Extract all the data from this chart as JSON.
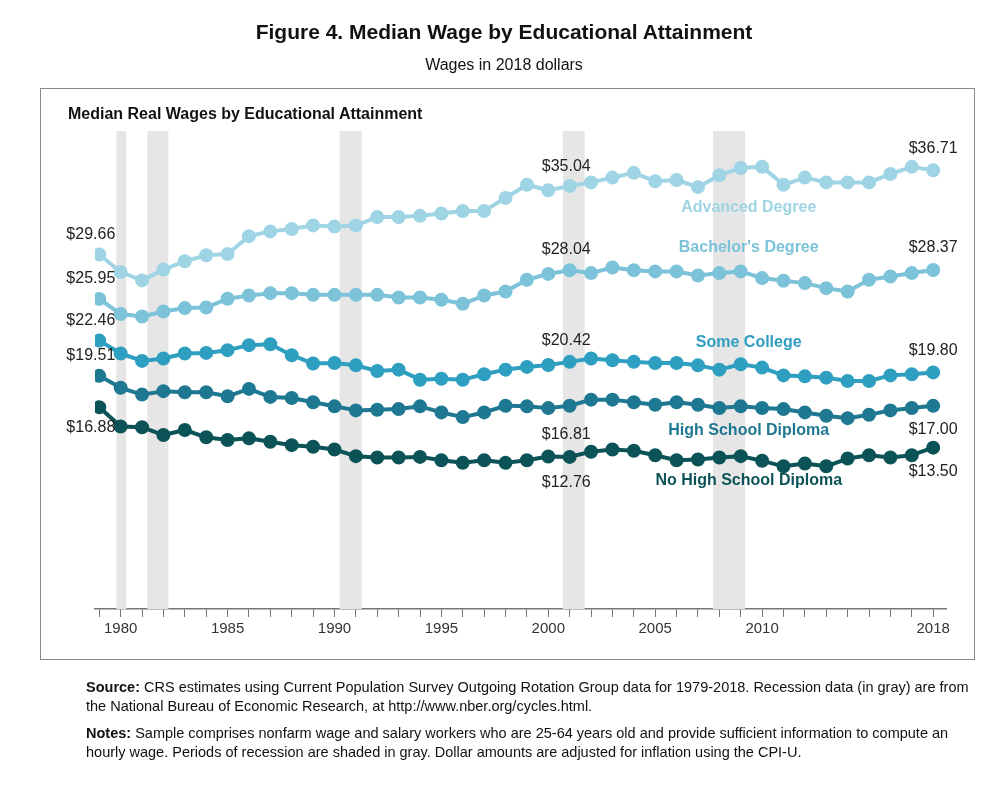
{
  "chart_data": {
    "type": "line",
    "title": "Figure 4. Median Wage by Educational Attainment",
    "subtitle": "Wages in 2018 dollars",
    "annotations": [
      "Median Real Wages by Educational Attainment",
      "Source: CRS estimates using Current Population Survey Outgoing Rotation Group data for 1979-2018. Recession data (in gray) are from the National Bureau of Economic Research, at http://www.nber.org/cycles.html.",
      "Notes: Sample comprises nonfarm wage and salary workers who are 25-64 years old and provide sufficient information to compute an hourly wage. Periods of recession are shaded in gray. Dollar amounts are adjusted for inflation using the CPI-U."
    ],
    "x": [
      1979,
      1980,
      1981,
      1982,
      1983,
      1984,
      1985,
      1986,
      1987,
      1988,
      1989,
      1990,
      1991,
      1992,
      1993,
      1994,
      1995,
      1996,
      1997,
      1998,
      1999,
      2000,
      2001,
      2002,
      2003,
      2004,
      2005,
      2006,
      2007,
      2008,
      2009,
      2010,
      2011,
      2012,
      2013,
      2014,
      2015,
      2016,
      2017,
      2018
    ],
    "xlim": [
      1978.8,
      2018.6
    ],
    "xticks": [
      {
        "value": 1979,
        "label": null
      },
      1980,
      {
        "value": 1981,
        "label": null
      },
      {
        "value": 1982,
        "label": null
      },
      {
        "value": 1983,
        "label": null
      },
      {
        "value": 1984,
        "label": null
      },
      1985,
      {
        "value": 1986,
        "label": null
      },
      {
        "value": 1987,
        "label": null
      },
      {
        "value": 1988,
        "label": null
      },
      {
        "value": 1989,
        "label": null
      },
      1990,
      {
        "value": 1991,
        "label": null
      },
      {
        "value": 1992,
        "label": null
      },
      {
        "value": 1993,
        "label": null
      },
      {
        "value": 1994,
        "label": null
      },
      1995,
      {
        "value": 1996,
        "label": null
      },
      {
        "value": 1997,
        "label": null
      },
      {
        "value": 1998,
        "label": null
      },
      {
        "value": 1999,
        "label": null
      },
      2000,
      {
        "value": 2001,
        "label": null
      },
      {
        "value": 2002,
        "label": null
      },
      {
        "value": 2003,
        "label": null
      },
      {
        "value": 2004,
        "label": null
      },
      2005,
      {
        "value": 2006,
        "label": null
      },
      {
        "value": 2007,
        "label": null
      },
      {
        "value": 2008,
        "label": null
      },
      {
        "value": 2009,
        "label": null
      },
      2010,
      {
        "value": 2011,
        "label": null
      },
      {
        "value": 2012,
        "label": null
      },
      {
        "value": 2013,
        "label": null
      },
      {
        "value": 2014,
        "label": null
      },
      {
        "value": 2015,
        "label": null
      },
      {
        "value": 2016,
        "label": null
      },
      {
        "value": 2017,
        "label": null
      },
      2018
    ],
    "tick_labels": "x",
    "grid": false,
    "legend": false,
    "marker": "circle",
    "bands": [
      {
        "axis": "x",
        "from": 1979.8,
        "to": 1980.26,
        "color": "#e6e6e6"
      },
      {
        "axis": "x",
        "from": 1981.25,
        "to": 1982.23,
        "color": "#e6e6e6"
      },
      {
        "axis": "x",
        "from": 1990.24,
        "to": 1991.27,
        "color": "#e6e6e6"
      },
      {
        "axis": "x",
        "from": 2000.68,
        "to": 2001.7,
        "color": "#e6e6e6"
      },
      {
        "axis": "x",
        "from": 2007.7,
        "to": 2009.2,
        "color": "#e6e6e6"
      }
    ],
    "series": [
      {
        "name": "Advanced Degree",
        "color": "#9fd4e4",
        "values": [
          29.66,
          28.2,
          27.5,
          28.4,
          29.1,
          29.6,
          29.7,
          31.2,
          31.6,
          31.8,
          32.1,
          32.0,
          32.1,
          32.8,
          32.8,
          32.9,
          33.1,
          33.3,
          33.3,
          34.4,
          35.5,
          35.04,
          35.4,
          35.7,
          36.1,
          36.5,
          35.8,
          35.9,
          35.3,
          36.3,
          36.9,
          37.0,
          35.5,
          36.1,
          35.7,
          35.7,
          35.7,
          36.4,
          37.0,
          36.71
        ],
        "value_labels": [
          "$29.66",
          null,
          null,
          null,
          null,
          null,
          null,
          null,
          null,
          null,
          null,
          null,
          null,
          null,
          null,
          null,
          null,
          null,
          null,
          null,
          null,
          "$35.04",
          null,
          null,
          null,
          null,
          null,
          null,
          null,
          null,
          null,
          null,
          null,
          null,
          null,
          null,
          null,
          null,
          null,
          "$36.71"
        ]
      },
      {
        "name": "Bachelor's Degree",
        "color": "#7cc3da",
        "values": [
          25.95,
          24.68,
          24.48,
          24.9,
          25.18,
          25.23,
          25.96,
          26.23,
          26.43,
          26.43,
          26.29,
          26.29,
          26.29,
          26.29,
          26.07,
          26.07,
          25.88,
          25.54,
          26.23,
          26.57,
          27.55,
          28.04,
          28.35,
          28.11,
          28.58,
          28.35,
          28.25,
          28.25,
          27.91,
          28.11,
          28.25,
          27.69,
          27.47,
          27.27,
          26.85,
          26.57,
          27.55,
          27.83,
          28.11,
          28.37
        ],
        "value_labels": [
          "$25.95",
          null,
          null,
          null,
          null,
          null,
          null,
          null,
          null,
          null,
          null,
          null,
          null,
          null,
          null,
          null,
          null,
          null,
          null,
          null,
          null,
          "$28.04",
          null,
          null,
          null,
          null,
          null,
          null,
          null,
          null,
          null,
          null,
          null,
          null,
          null,
          null,
          null,
          null,
          null,
          "$28.37"
        ]
      },
      {
        "name": "Some College",
        "color": "#2f9fc1",
        "values": [
          22.46,
          21.38,
          20.76,
          20.96,
          21.38,
          21.43,
          21.66,
          22.08,
          22.16,
          21.24,
          20.54,
          20.59,
          20.39,
          19.92,
          20.03,
          19.19,
          19.27,
          19.19,
          19.64,
          20.03,
          20.26,
          20.42,
          20.68,
          20.96,
          20.82,
          20.68,
          20.59,
          20.59,
          20.39,
          20.03,
          20.48,
          20.2,
          19.55,
          19.47,
          19.36,
          19.08,
          19.08,
          19.55,
          19.64,
          19.8
        ],
        "value_labels": [
          "$22.46",
          null,
          null,
          null,
          null,
          null,
          null,
          null,
          null,
          null,
          null,
          null,
          null,
          null,
          null,
          null,
          null,
          null,
          null,
          null,
          null,
          "$20.42",
          null,
          null,
          null,
          null,
          null,
          null,
          null,
          null,
          null,
          null,
          null,
          null,
          null,
          null,
          null,
          null,
          null,
          "$19.80"
        ]
      },
      {
        "name": "High School Diploma",
        "color": "#1f7892",
        "values": [
          19.51,
          18.51,
          17.94,
          18.23,
          18.14,
          18.14,
          17.8,
          18.42,
          17.75,
          17.66,
          17.3,
          16.96,
          16.62,
          16.67,
          16.73,
          16.96,
          16.45,
          16.06,
          16.45,
          17.01,
          16.96,
          16.81,
          17.01,
          17.52,
          17.52,
          17.3,
          17.09,
          17.3,
          17.09,
          16.82,
          16.96,
          16.82,
          16.73,
          16.45,
          16.17,
          15.97,
          16.25,
          16.62,
          16.82,
          17.0
        ],
        "value_labels": [
          "$19.51",
          null,
          null,
          null,
          null,
          null,
          null,
          null,
          null,
          null,
          null,
          null,
          null,
          null,
          null,
          null,
          null,
          null,
          null,
          null,
          null,
          "$16.81",
          null,
          null,
          null,
          null,
          null,
          null,
          null,
          null,
          null,
          null,
          null,
          null,
          null,
          null,
          null,
          null,
          null,
          "$17.00"
        ]
      },
      {
        "name": "No High School Diploma",
        "color": "#0c5358",
        "values": [
          16.88,
          15.27,
          15.21,
          14.56,
          14.98,
          14.37,
          14.14,
          14.28,
          14.0,
          13.71,
          13.58,
          13.35,
          12.79,
          12.68,
          12.68,
          12.73,
          12.45,
          12.23,
          12.45,
          12.23,
          12.45,
          12.76,
          12.73,
          13.16,
          13.35,
          13.24,
          12.87,
          12.45,
          12.51,
          12.68,
          12.79,
          12.4,
          11.94,
          12.17,
          11.94,
          12.59,
          12.87,
          12.68,
          12.87,
          13.5
        ],
        "value_labels": [
          "$16.88",
          null,
          null,
          null,
          null,
          null,
          null,
          null,
          null,
          null,
          null,
          null,
          null,
          null,
          null,
          null,
          null,
          null,
          null,
          null,
          null,
          "$12.76",
          null,
          null,
          null,
          null,
          null,
          null,
          null,
          null,
          null,
          null,
          null,
          null,
          null,
          null,
          null,
          null,
          null,
          "$13.50"
        ]
      }
    ]
  }
}
